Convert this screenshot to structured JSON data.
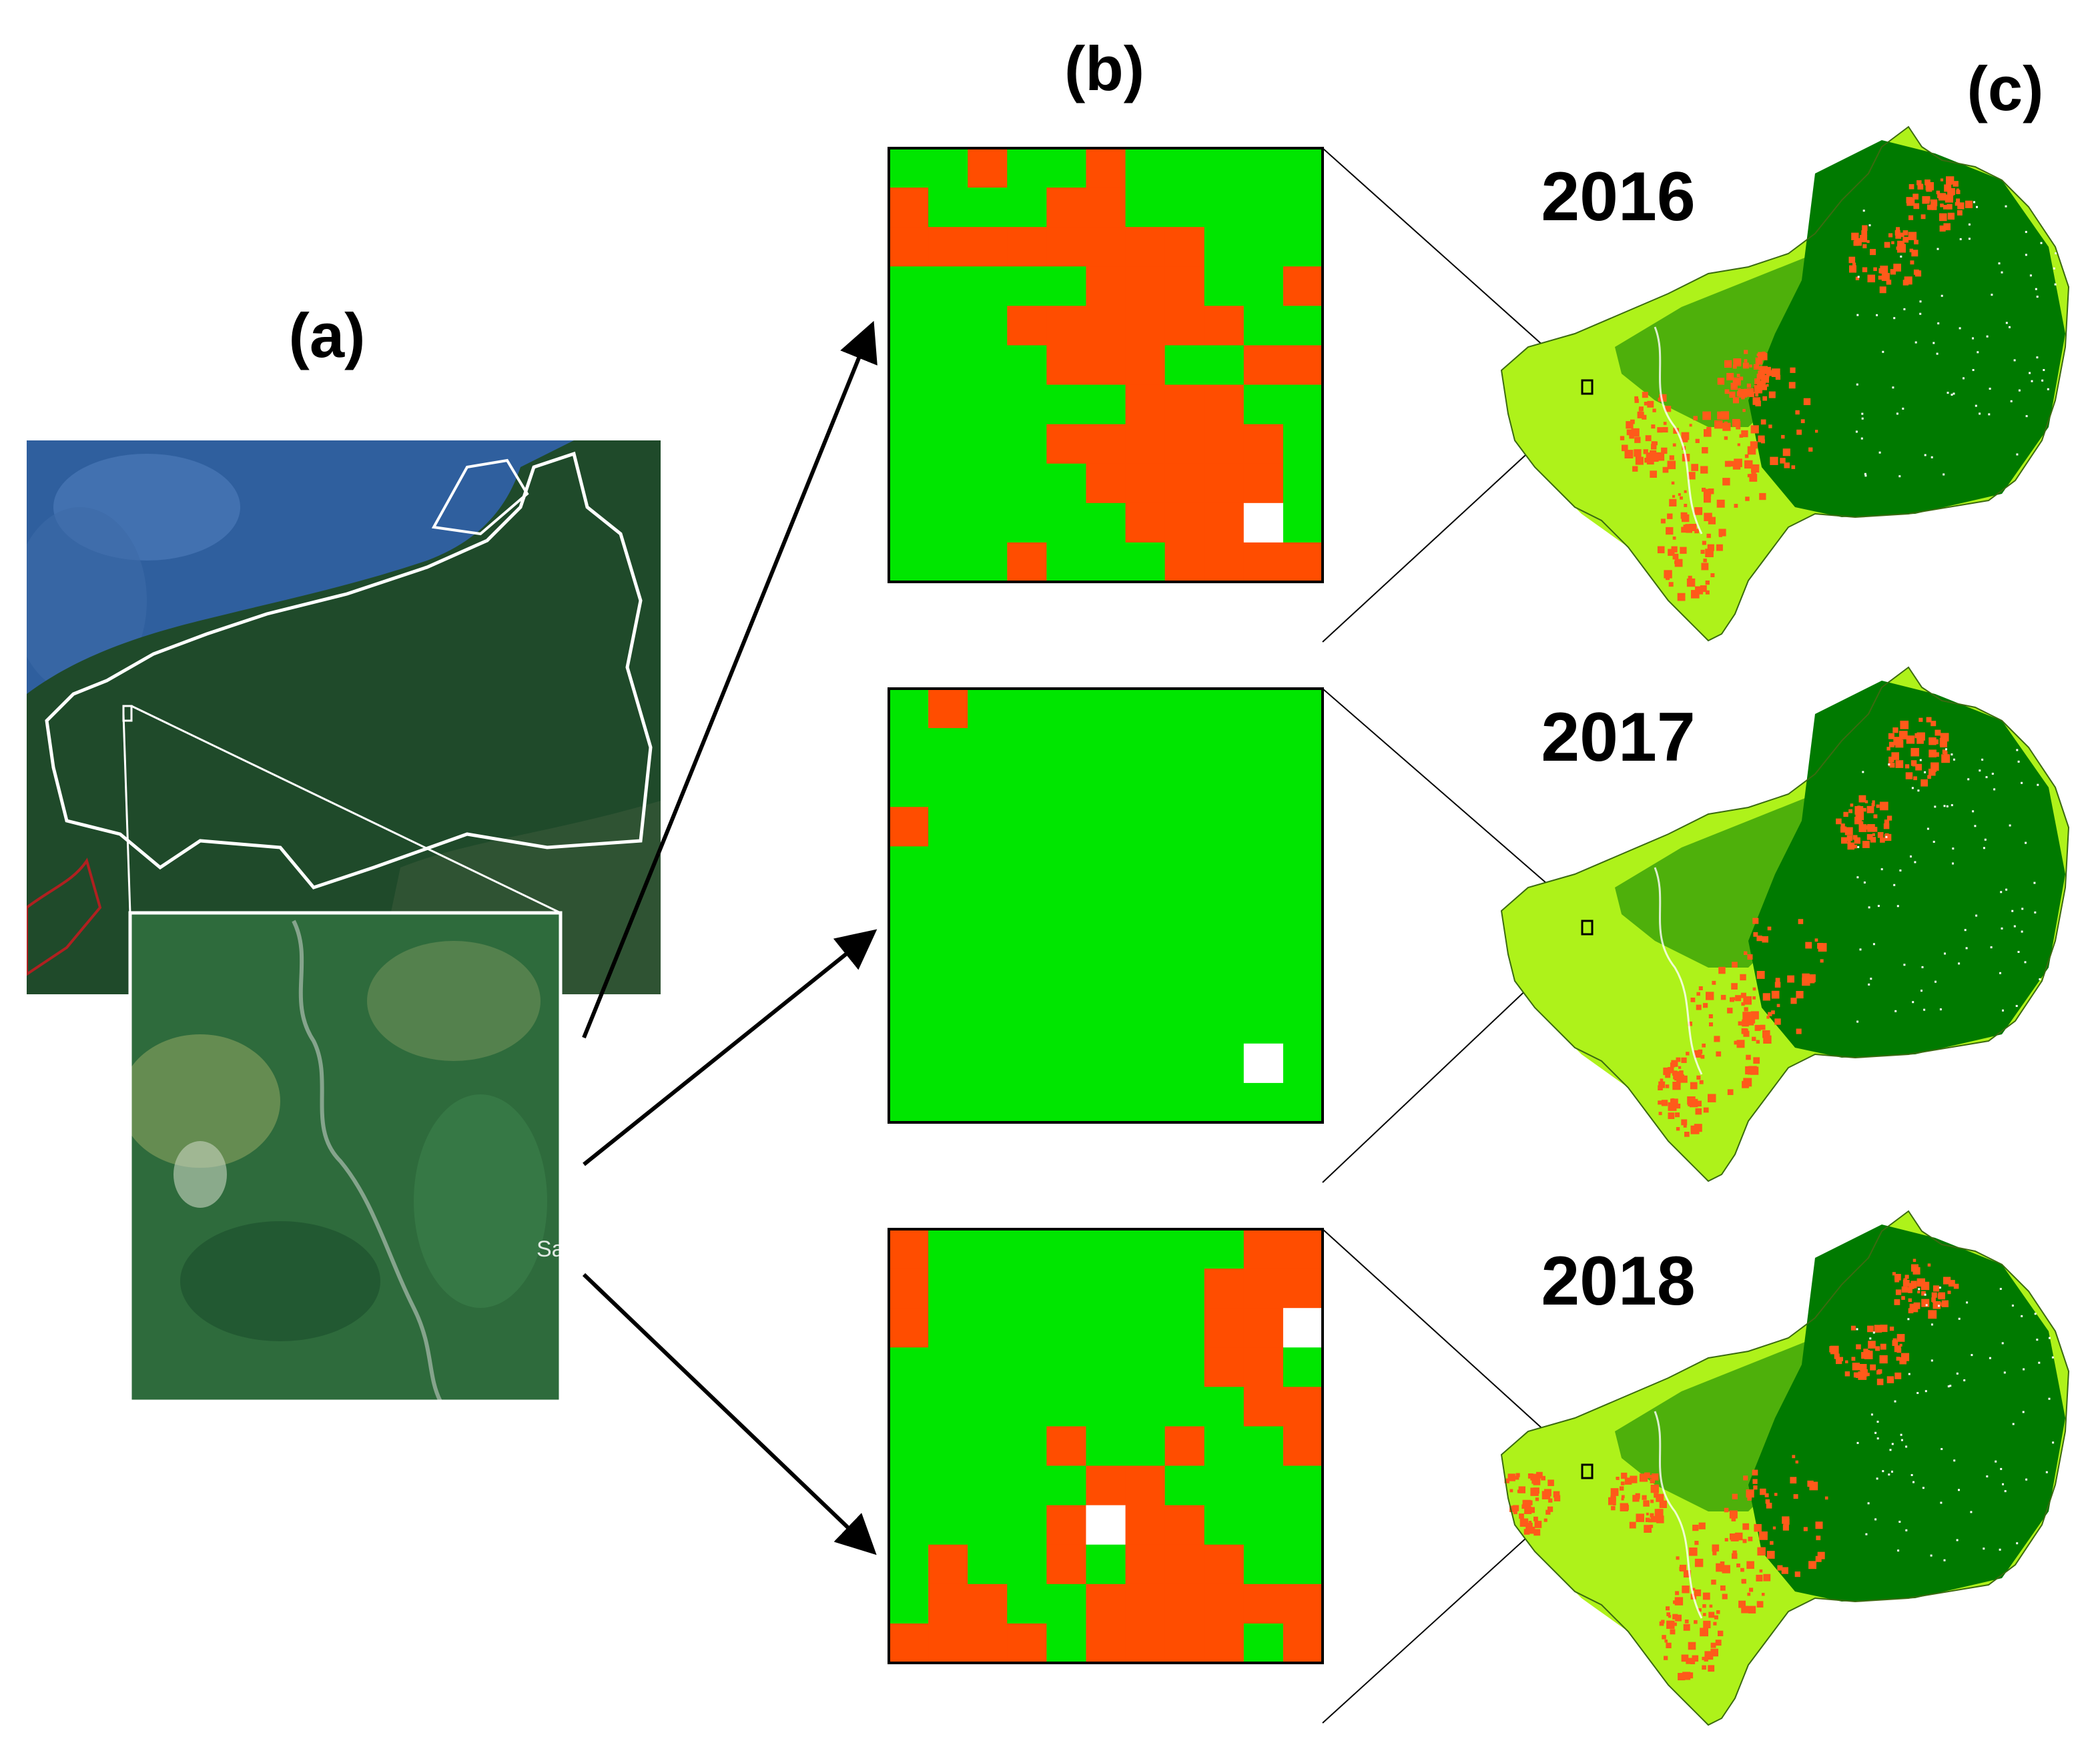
{
  "panels": {
    "a": {
      "label": "(a)",
      "partial_place_label": "Sa"
    },
    "b": {
      "label": "(b)"
    },
    "c": {
      "label": "(c)"
    }
  },
  "years": [
    {
      "year": "2016",
      "grid_cells": []
    },
    {
      "year": "2017",
      "grid_cells": []
    },
    {
      "year": "2018",
      "grid_cells": []
    }
  ],
  "colors": {
    "class_red": "#ff4d00",
    "class_green": "#00e600",
    "class_nodata": "#ffffff",
    "map_light_green": "#aef21a",
    "map_dark_green": "#007a00",
    "map_orange": "#ff5a1a",
    "satellite_sea": "#2f5f9e",
    "satellite_land": "#1f4a2a"
  },
  "grids": {
    "size": 11,
    "legend": {
      "R": "class_red",
      "G": "class_green",
      "W": "class_nodata"
    },
    "2016": [
      "GGRGGRGGGGG",
      "RGGGRRGGGGG",
      "RRRRRRRRGGG",
      "GGGGGRRRGGR",
      "GGGRRRRRRGG",
      "GGGGRRRGGRR",
      "GGGGGGRRRGG",
      "GGGGRRRRRRG",
      "GGGGGRRRRRG",
      "GGGGGGRRRWG",
      "GGGRGGGRRRR"
    ],
    "2017": [
      "GRGGGGGGGGG",
      "GGGGGGGGGGG",
      "GGGGGGGGGGG",
      "RGGGGGGGGGG",
      "GGGGGGGGGGG",
      "GGGGGGGGGGG",
      "GGGGGGGGGGG",
      "GGGGGGGGGGG",
      "GGGGGGGGGGG",
      "GGGGGGGGGWG",
      "GGGGGGGGGGG"
    ],
    "2018": [
      "RGGGGGGGGRR",
      "RGGGGGGGRRR",
      "RGGGGGGGRRW",
      "GGGGGGGGRRG",
      "GGGGGGGGGRR",
      "GGGGRGGRGGR",
      "GGGGGRRGGGG",
      "GGGGRWRRGGG",
      "GRGGRGRRRGG",
      "GRRGGRRRRRR",
      "RRRRGRRRRGR"
    ]
  }
}
